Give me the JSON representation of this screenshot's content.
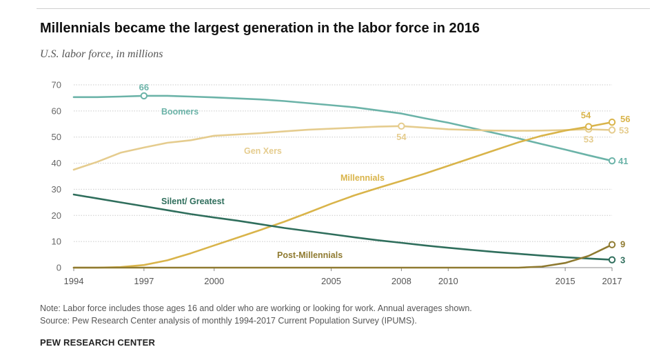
{
  "title": "Millennials became the largest generation in the labor force in 2016",
  "subtitle": "U.S. labor force, in millions",
  "note": "Note: Labor force includes those ages 16 and older who are working or looking for work. Annual averages shown.",
  "source": "Source: Pew Research Center analysis of monthly 1994-2017 Current Population Survey (IPUMS).",
  "brand": "PEW RESEARCH CENTER",
  "chart_data": {
    "type": "line",
    "xlim": [
      1994,
      2017
    ],
    "ylim": [
      0,
      70
    ],
    "grid": true,
    "x_ticks": [
      1994,
      1997,
      2000,
      2005,
      2008,
      2010,
      2015,
      2017
    ],
    "y_ticks": [
      0,
      10,
      20,
      30,
      40,
      50,
      60,
      70
    ],
    "x": [
      1994,
      1995,
      1996,
      1997,
      1998,
      1999,
      2000,
      2001,
      2002,
      2003,
      2004,
      2005,
      2006,
      2007,
      2008,
      2009,
      2010,
      2011,
      2012,
      2013,
      2014,
      2015,
      2016,
      2017
    ],
    "series": [
      {
        "name": "Boomers",
        "color": "#6bb3a8",
        "values": [
          65.3,
          65.3,
          65.5,
          65.8,
          65.8,
          65.5,
          65.2,
          64.8,
          64.4,
          63.8,
          63.0,
          62.2,
          61.4,
          60.2,
          59.0,
          57.2,
          55.5,
          53.5,
          51.5,
          49.5,
          47.3,
          45.2,
          43.0,
          40.9
        ],
        "labels": [
          {
            "x": 1997,
            "text": "66"
          },
          {
            "x": 2017,
            "text": "41"
          }
        ],
        "name_label": "Boomers"
      },
      {
        "name": "Gen Xers",
        "color": "#e5cc8e",
        "values": [
          37.5,
          40.5,
          44.0,
          46.0,
          47.8,
          48.8,
          50.5,
          51.0,
          51.5,
          52.2,
          52.8,
          53.2,
          53.6,
          54.0,
          54.2,
          53.6,
          53.0,
          52.7,
          52.5,
          52.4,
          52.5,
          52.7,
          53.0,
          52.7
        ],
        "labels": [
          {
            "x": 2008,
            "text": "54"
          },
          {
            "x": 2016,
            "text": "53"
          },
          {
            "x": 2017,
            "text": "53"
          }
        ],
        "name_label": "Gen Xers"
      },
      {
        "name": "Millennials",
        "color": "#d9b44a",
        "values": [
          0,
          0,
          0.2,
          1.0,
          2.8,
          5.5,
          8.5,
          11.5,
          14.5,
          17.6,
          21.0,
          24.5,
          27.7,
          30.5,
          33.2,
          36.0,
          39.0,
          42.0,
          45.0,
          48.0,
          50.5,
          52.5,
          54.0,
          55.7
        ],
        "labels": [
          {
            "x": 2016,
            "text": "54"
          },
          {
            "x": 2017,
            "text": "56"
          }
        ],
        "name_label": "Millennials"
      },
      {
        "name": "Silent/Greatest",
        "color": "#2f6e5c",
        "values": [
          28.0,
          26.5,
          25.0,
          23.5,
          22.0,
          20.5,
          19.2,
          18.0,
          16.6,
          15.2,
          14.0,
          12.8,
          11.6,
          10.5,
          9.5,
          8.5,
          7.6,
          6.8,
          6.0,
          5.3,
          4.6,
          4.0,
          3.5,
          3.0
        ],
        "labels": [
          {
            "x": 2017,
            "text": "3"
          }
        ],
        "name_label": "Silent/ Greatest"
      },
      {
        "name": "Post-Millennials",
        "color": "#8f7a30",
        "values": [
          0,
          0,
          0,
          0,
          0,
          0,
          0,
          0,
          0,
          0,
          0,
          0,
          0,
          0,
          0,
          0,
          0,
          0,
          0,
          0,
          0.4,
          1.8,
          4.5,
          8.8
        ],
        "labels": [
          {
            "x": 2017,
            "text": "9"
          }
        ],
        "name_label": "Post-Millennials"
      }
    ]
  }
}
